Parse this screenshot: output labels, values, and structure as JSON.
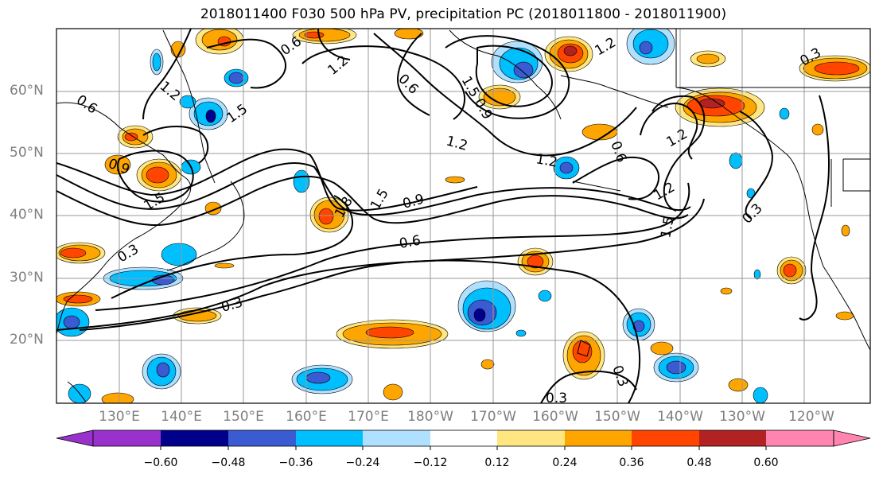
{
  "title": "2018011400 F030 500 hPa PV, precipitation PC (2018011800 - 2018011900)",
  "map": {
    "lat_labels": [
      "60°N",
      "50°N",
      "40°N",
      "30°N",
      "20°N"
    ],
    "lon_labels": [
      "130°E",
      "140°E",
      "150°E",
      "160°E",
      "170°E",
      "180°W",
      "170°W",
      "160°W",
      "150°W",
      "140°W",
      "130°W",
      "120°W"
    ],
    "contour_labels": [
      "0.6",
      "1.2",
      "0.6",
      "0.9",
      "1.5",
      "1.2",
      "1.5",
      "0.6",
      "0.9",
      "1.2",
      "1.5",
      "1.8",
      "0.9",
      "1.5",
      "0.6",
      "0.3",
      "0.3",
      "1.2",
      "1.2",
      "0.6",
      "1.5",
      "1.2",
      "0.3",
      "0.3",
      "0.3",
      "0.3",
      "1.2"
    ]
  },
  "colorbar": {
    "labels": [
      "−0.60",
      "−0.48",
      "−0.36",
      "−0.24",
      "−0.12",
      "0.12",
      "0.24",
      "0.36",
      "0.48",
      "0.60"
    ],
    "colors": [
      "#9932cc",
      "#00008b",
      "#3a5bd1",
      "#00bfff",
      "#b0e0ff",
      "#ffffff",
      "#ffe680",
      "#ffa500",
      "#ff4500",
      "#b22222",
      "#ff85b0"
    ]
  }
}
